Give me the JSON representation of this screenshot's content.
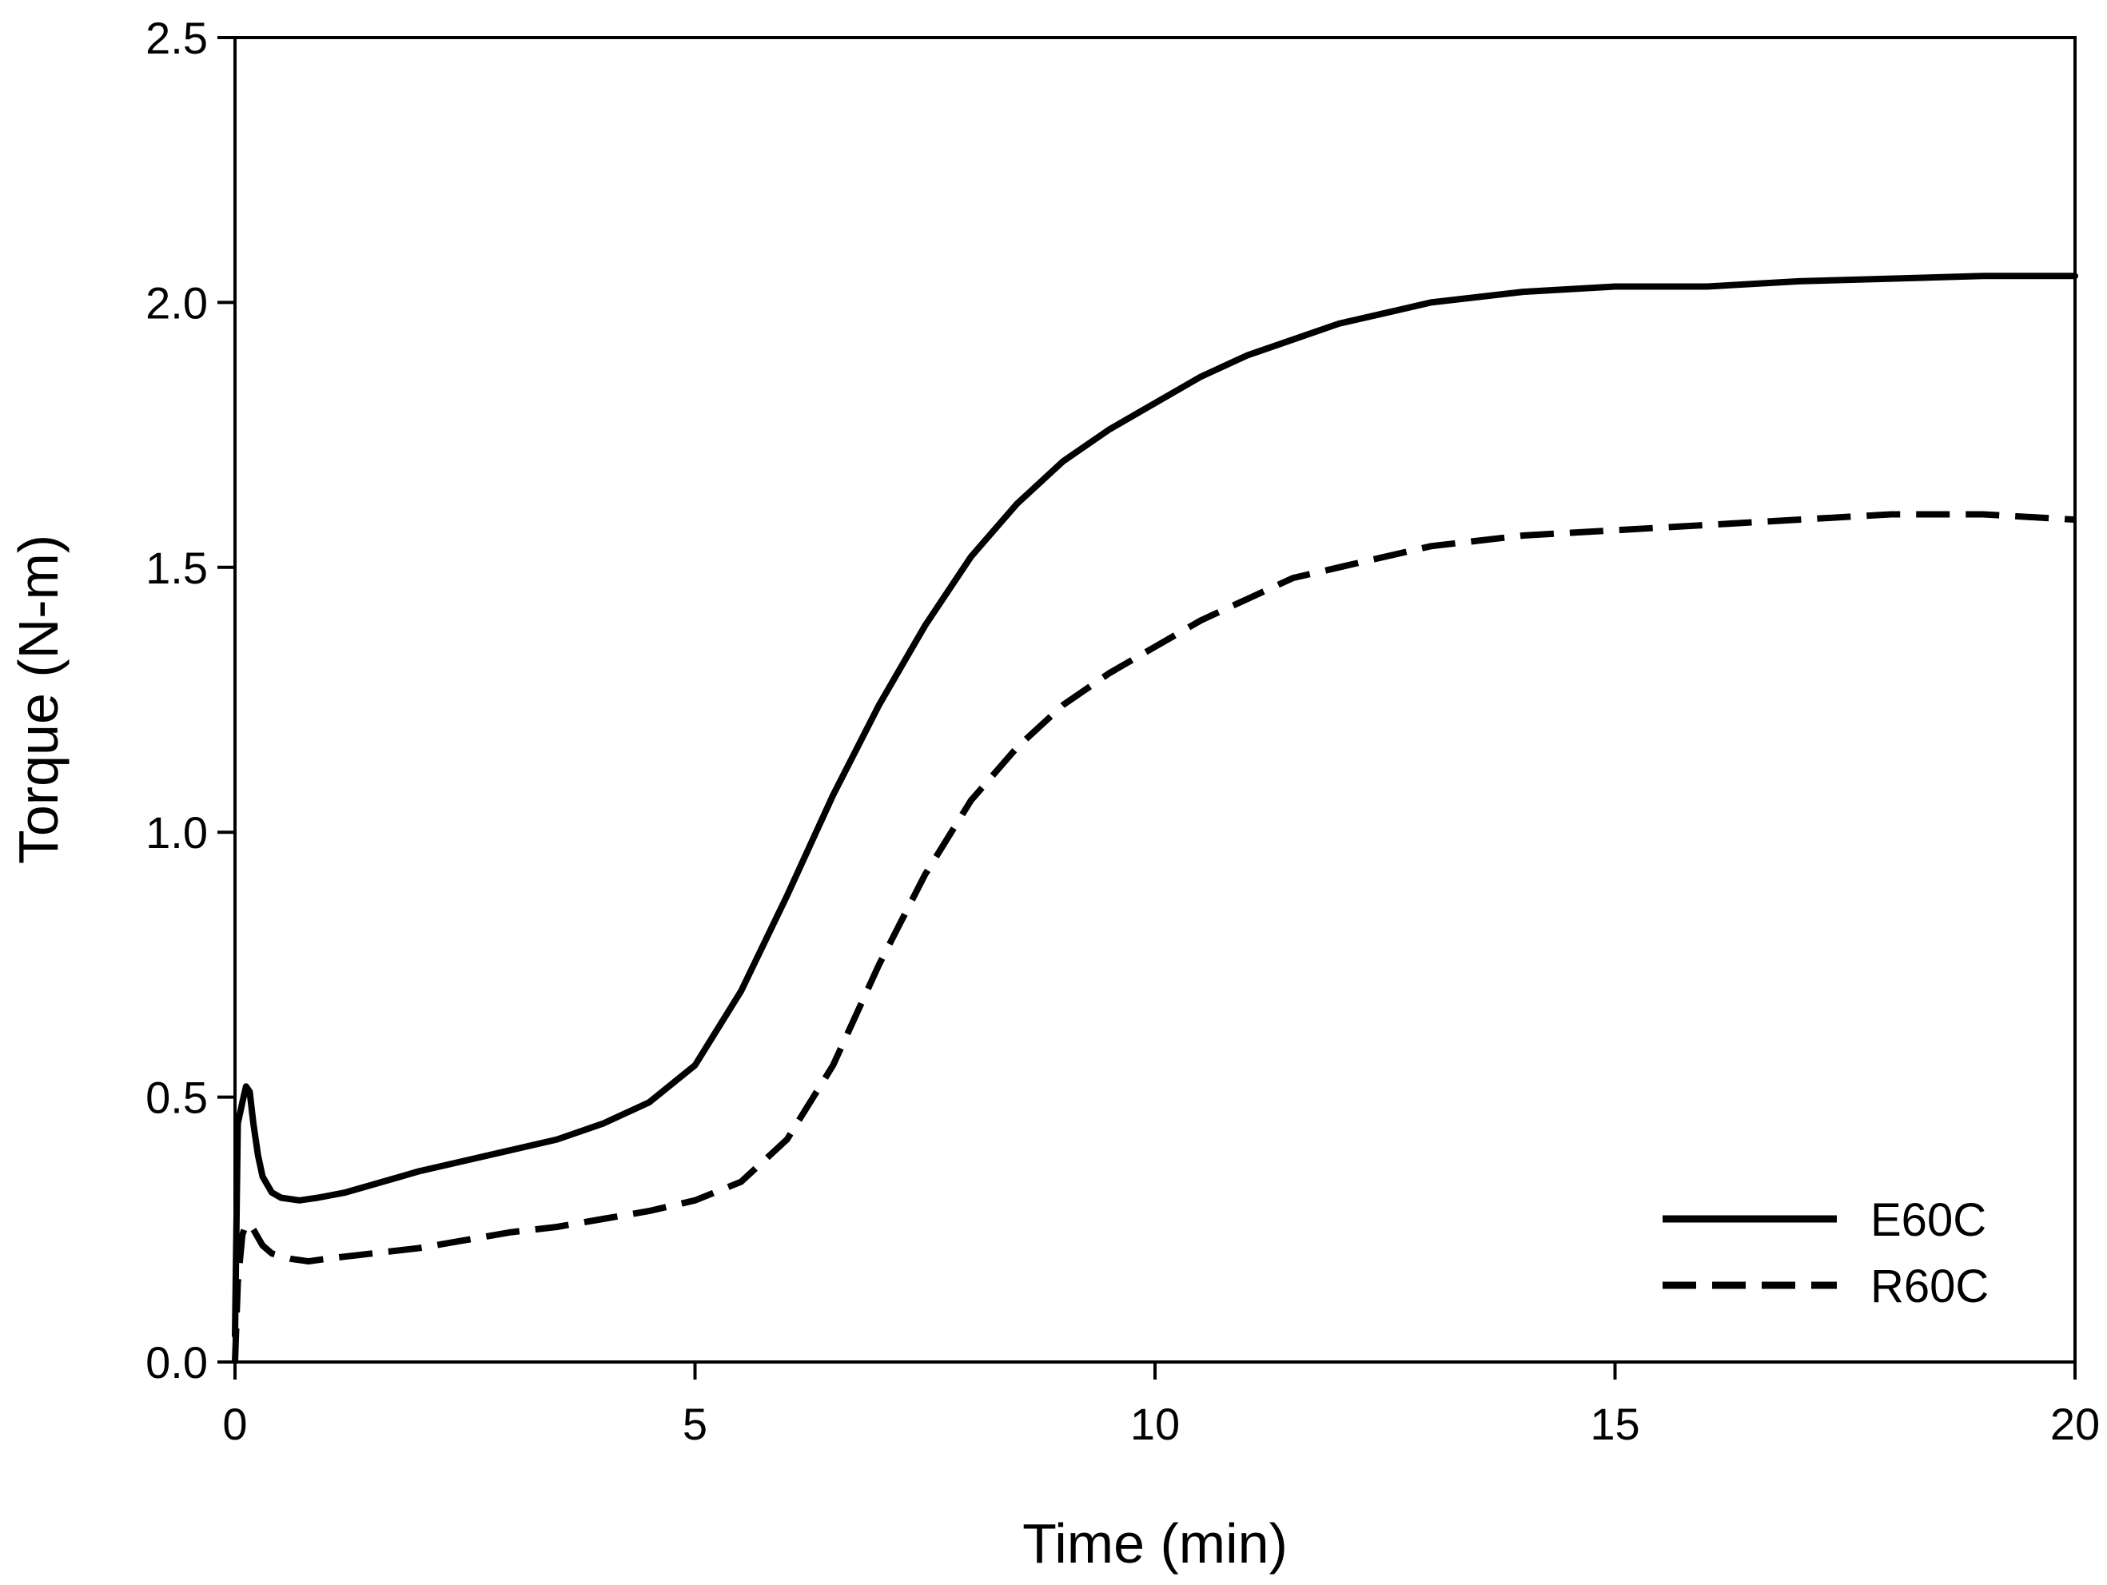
{
  "chart_data": {
    "type": "line",
    "title": "",
    "xlabel": "Time (min)",
    "ylabel": "Torque (N-m)",
    "xlim": [
      0,
      20
    ],
    "ylim": [
      0,
      2.5
    ],
    "xticks": [
      0,
      5,
      10,
      15,
      20
    ],
    "xtick_labels": [
      "0",
      "5",
      "10",
      "15",
      "20"
    ],
    "yticks": [
      0,
      0.5,
      1,
      1.5,
      2,
      2.5
    ],
    "ytick_labels": [
      "0.0",
      "0.5",
      "1.0",
      "1.5",
      "2.0",
      "2.5"
    ],
    "grid": false,
    "legend_position": "bottom-right",
    "series": [
      {
        "name": "E60C",
        "style": "solid",
        "color": "#000000",
        "x": [
          0,
          0.03,
          0.08,
          0.12,
          0.16,
          0.2,
          0.25,
          0.3,
          0.4,
          0.5,
          0.7,
          0.9,
          1.2,
          1.5,
          2,
          2.5,
          3,
          3.5,
          4,
          4.5,
          5,
          5.5,
          6,
          6.5,
          7,
          7.5,
          8,
          8.5,
          9,
          9.5,
          10,
          10.5,
          11,
          11.5,
          12,
          12.5,
          13,
          14,
          15,
          16,
          17,
          18,
          19,
          20
        ],
        "y": [
          0.05,
          0.45,
          0.49,
          0.52,
          0.51,
          0.45,
          0.39,
          0.35,
          0.32,
          0.31,
          0.305,
          0.31,
          0.32,
          0.335,
          0.36,
          0.38,
          0.4,
          0.42,
          0.45,
          0.49,
          0.56,
          0.7,
          0.88,
          1.07,
          1.24,
          1.39,
          1.52,
          1.62,
          1.7,
          1.76,
          1.81,
          1.86,
          1.9,
          1.93,
          1.96,
          1.98,
          2,
          2.02,
          2.03,
          2.03,
          2.04,
          2.045,
          2.05,
          2.05
        ]
      },
      {
        "name": "R60C",
        "style": "dashed",
        "color": "#000000",
        "x": [
          0,
          0.03,
          0.08,
          0.12,
          0.16,
          0.2,
          0.3,
          0.4,
          0.6,
          0.8,
          1,
          1.5,
          2,
          2.5,
          3,
          3.5,
          4,
          4.5,
          5,
          5.5,
          6,
          6.5,
          7,
          7.5,
          8,
          8.5,
          9,
          9.5,
          10,
          10.5,
          11,
          11.5,
          12,
          12.5,
          13,
          14,
          15,
          16,
          17,
          18,
          19,
          20
        ],
        "y": [
          0,
          0.15,
          0.24,
          0.26,
          0.26,
          0.25,
          0.22,
          0.205,
          0.195,
          0.19,
          0.195,
          0.205,
          0.215,
          0.23,
          0.245,
          0.255,
          0.27,
          0.285,
          0.305,
          0.34,
          0.42,
          0.56,
          0.75,
          0.92,
          1.06,
          1.16,
          1.24,
          1.3,
          1.35,
          1.4,
          1.44,
          1.48,
          1.5,
          1.52,
          1.54,
          1.56,
          1.57,
          1.58,
          1.59,
          1.6,
          1.6,
          1.59
        ]
      }
    ]
  }
}
